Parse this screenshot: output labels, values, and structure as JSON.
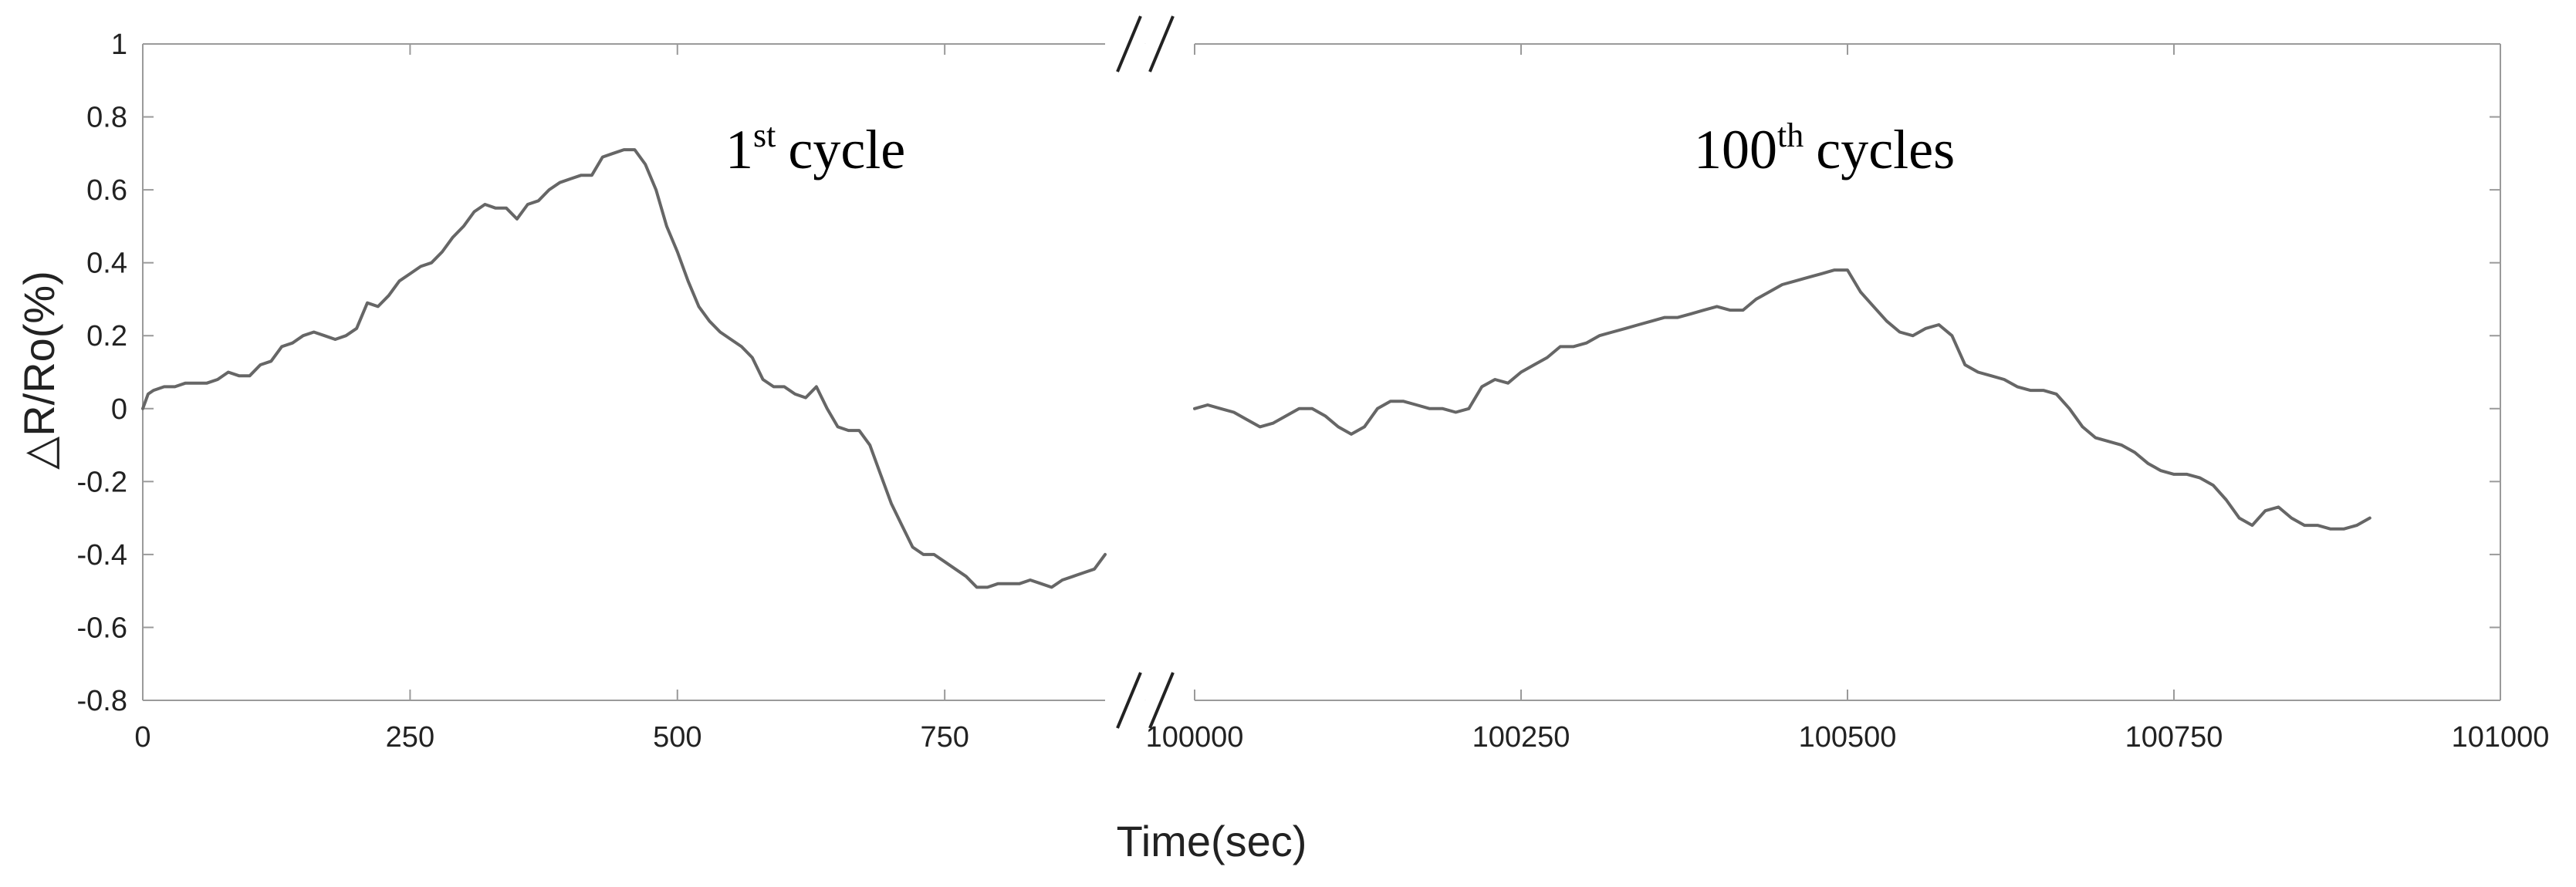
{
  "chart_data": {
    "type": "line",
    "ylabel": "△R/Ro(%)",
    "xlabel": "Time(sec)",
    "ylim": [
      -0.8,
      1
    ],
    "yticks": [
      -0.8,
      -0.6,
      -0.4,
      -0.2,
      0,
      0.2,
      0.4,
      0.6,
      0.8,
      1
    ],
    "ytick_labels": [
      "-0.8",
      "-0.6",
      "-0.4",
      "-0.2",
      "0",
      "0.2",
      "0.4",
      "0.6",
      "0.8",
      "1"
    ],
    "axis_break": "//",
    "grid": false,
    "line_color": "#666666",
    "panels": [
      {
        "annotation": {
          "number": "1",
          "superscript": "st",
          "text": "cycle"
        },
        "xlim": [
          0,
          900
        ],
        "xticks": [
          0,
          250,
          500,
          750
        ],
        "xtick_labels": [
          "0",
          "250",
          "500",
          "750"
        ],
        "x": [
          0,
          5,
          10,
          20,
          30,
          40,
          50,
          60,
          70,
          80,
          90,
          100,
          110,
          120,
          130,
          140,
          150,
          160,
          170,
          180,
          190,
          200,
          210,
          220,
          230,
          240,
          250,
          260,
          270,
          280,
          290,
          300,
          310,
          320,
          330,
          340,
          350,
          360,
          370,
          380,
          390,
          400,
          410,
          420,
          430,
          440,
          450,
          460,
          470,
          480,
          490,
          500,
          510,
          520,
          530,
          540,
          550,
          560,
          570,
          580,
          590,
          600,
          610,
          620,
          630,
          640,
          650,
          660,
          670,
          680,
          690,
          700,
          710,
          720,
          730,
          740,
          750,
          760,
          770,
          780,
          790,
          800,
          810,
          820,
          830,
          840,
          850,
          860,
          870,
          880,
          890,
          900
        ],
        "y": [
          0.0,
          0.04,
          0.05,
          0.06,
          0.06,
          0.07,
          0.07,
          0.07,
          0.08,
          0.1,
          0.09,
          0.09,
          0.12,
          0.13,
          0.17,
          0.18,
          0.2,
          0.21,
          0.2,
          0.19,
          0.2,
          0.22,
          0.29,
          0.28,
          0.31,
          0.35,
          0.37,
          0.39,
          0.4,
          0.43,
          0.47,
          0.5,
          0.54,
          0.56,
          0.55,
          0.55,
          0.52,
          0.56,
          0.57,
          0.6,
          0.62,
          0.63,
          0.64,
          0.64,
          0.69,
          0.7,
          0.71,
          0.71,
          0.67,
          0.6,
          0.5,
          0.43,
          0.35,
          0.28,
          0.24,
          0.21,
          0.19,
          0.17,
          0.14,
          0.08,
          0.06,
          0.06,
          0.04,
          0.03,
          0.06,
          0.0,
          -0.05,
          -0.06,
          -0.06,
          -0.1,
          -0.18,
          -0.26,
          -0.32,
          -0.38,
          -0.4,
          -0.4,
          -0.42,
          -0.44,
          -0.46,
          -0.49,
          -0.49,
          -0.48,
          -0.48,
          -0.48,
          -0.47,
          -0.48,
          -0.49,
          -0.47,
          -0.46,
          -0.45,
          -0.44,
          -0.4
        ]
      },
      {
        "annotation": {
          "number": "100",
          "superscript": "th",
          "text": "cycles"
        },
        "xlim": [
          100000,
          101000
        ],
        "xticks": [
          100000,
          100250,
          100500,
          100750,
          101000
        ],
        "xtick_labels": [
          "100000",
          "100250",
          "100500",
          "100750",
          "101000"
        ],
        "x": [
          100000,
          100010,
          100020,
          100030,
          100040,
          100050,
          100060,
          100070,
          100080,
          100090,
          100100,
          100110,
          100120,
          100130,
          100140,
          100150,
          100160,
          100170,
          100180,
          100190,
          100200,
          100210,
          100220,
          100230,
          100240,
          100250,
          100260,
          100270,
          100280,
          100290,
          100300,
          100310,
          100320,
          100330,
          100340,
          100350,
          100360,
          100370,
          100380,
          100390,
          100400,
          100410,
          100420,
          100430,
          100440,
          100450,
          100460,
          100470,
          100480,
          100490,
          100500,
          100510,
          100520,
          100530,
          100540,
          100550,
          100560,
          100570,
          100580,
          100590,
          100600,
          100610,
          100620,
          100630,
          100640,
          100650,
          100660,
          100670,
          100680,
          100690,
          100700,
          100710,
          100720,
          100730,
          100740,
          100750,
          100760,
          100770,
          100780,
          100790,
          100800,
          100810,
          100820,
          100830,
          100840,
          100850,
          100860,
          100870,
          100880,
          100890,
          100900
        ],
        "y": [
          0.0,
          0.01,
          0.0,
          -0.01,
          -0.03,
          -0.05,
          -0.04,
          -0.02,
          0.0,
          0.0,
          -0.02,
          -0.05,
          -0.07,
          -0.05,
          0.0,
          0.02,
          0.02,
          0.01,
          0.0,
          0.0,
          -0.01,
          0.0,
          0.06,
          0.08,
          0.07,
          0.1,
          0.12,
          0.14,
          0.17,
          0.17,
          0.18,
          0.2,
          0.21,
          0.22,
          0.23,
          0.24,
          0.25,
          0.25,
          0.26,
          0.27,
          0.28,
          0.27,
          0.27,
          0.3,
          0.32,
          0.34,
          0.35,
          0.36,
          0.37,
          0.38,
          0.38,
          0.32,
          0.28,
          0.24,
          0.21,
          0.2,
          0.22,
          0.23,
          0.2,
          0.12,
          0.1,
          0.09,
          0.08,
          0.06,
          0.05,
          0.05,
          0.04,
          0.0,
          -0.05,
          -0.08,
          -0.09,
          -0.1,
          -0.12,
          -0.15,
          -0.17,
          -0.18,
          -0.18,
          -0.19,
          -0.21,
          -0.25,
          -0.3,
          -0.32,
          -0.28,
          -0.27,
          -0.3,
          -0.32,
          -0.32,
          -0.33,
          -0.33,
          -0.32,
          -0.3
        ]
      }
    ]
  }
}
